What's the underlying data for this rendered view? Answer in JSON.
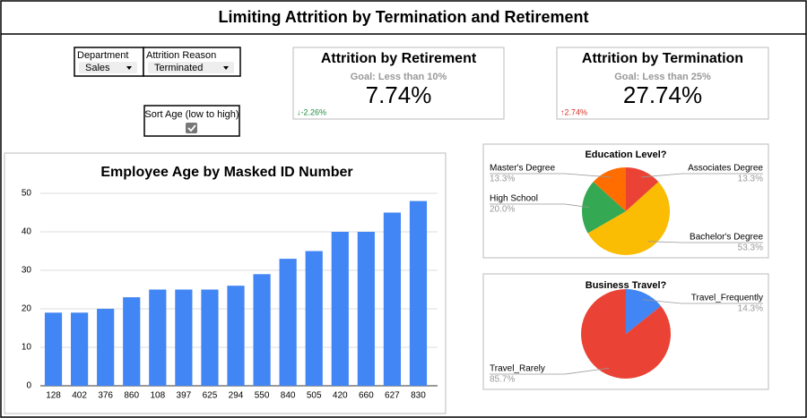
{
  "header": {
    "title": "Limiting Attrition by Termination and Retirement"
  },
  "filters": [
    {
      "label": "Department",
      "value": "Sales"
    },
    {
      "label": "Attrition Reason",
      "value": "Terminated"
    }
  ],
  "sort_toggle": {
    "label": "Sort Age (low to high)",
    "checked": true
  },
  "scorecards": [
    {
      "title": "Attrition by Retirement",
      "goal": "Goal: Less than 10%",
      "value": "7.74%",
      "delta": "↓-2.26%",
      "delta_color": "#1e8e3e"
    },
    {
      "title": "Attrition by Termination",
      "goal": "Goal: Less than 25%",
      "value": "27.74%",
      "delta": "↑2.74%",
      "delta_color": "#d93025"
    }
  ],
  "chart_data": [
    {
      "type": "bar",
      "title": "Employee Age by Masked ID Number",
      "categories": [
        "128",
        "402",
        "376",
        "860",
        "108",
        "397",
        "625",
        "294",
        "550",
        "840",
        "505",
        "420",
        "660",
        "627",
        "830"
      ],
      "values": [
        19,
        19,
        20,
        23,
        25,
        25,
        25,
        26,
        29,
        33,
        35,
        40,
        40,
        45,
        48
      ],
      "color": "#4285f4",
      "ylim": [
        0,
        50
      ],
      "yticks": [
        0,
        10,
        20,
        30,
        40,
        50
      ],
      "grid": true
    },
    {
      "type": "pie",
      "title": "Education Level?",
      "categories": [
        "Associates Degree",
        "Bachelor's Degree",
        "High School",
        "Master's Degree"
      ],
      "values": [
        13.3,
        53.3,
        20.0,
        13.3
      ],
      "value_labels": [
        "13.3%",
        "53.3%",
        "20.0%",
        "13.3%"
      ],
      "colors": [
        "#ea4335",
        "#fbbc04",
        "#34a853",
        "#ff6d01"
      ]
    },
    {
      "type": "pie",
      "title": "Business Travel?",
      "categories": [
        "Travel_Frequently",
        "Travel_Rarely"
      ],
      "values": [
        14.3,
        85.7
      ],
      "value_labels": [
        "14.3%",
        "85.7%"
      ],
      "colors": [
        "#4285f4",
        "#ea4335"
      ]
    }
  ]
}
